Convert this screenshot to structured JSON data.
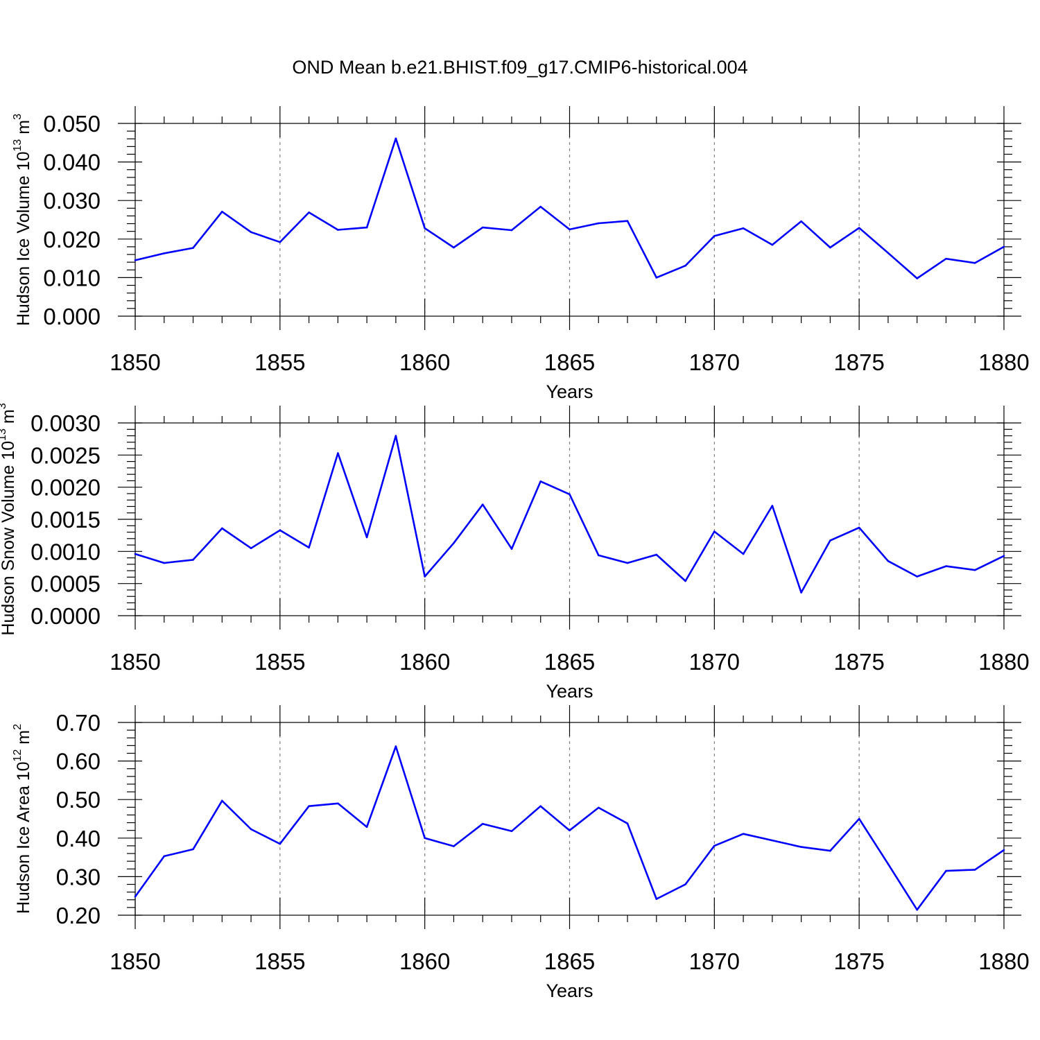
{
  "title": "OND Mean b.e21.BHIST.f09_g17.CMIP6-historical.004",
  "colors": {
    "line": "#0000ff",
    "axis": "#000000",
    "grid": "#7f7f7f"
  },
  "chart_data": [
    {
      "type": "line",
      "xlabel": "Years",
      "ylabel": {
        "prefix": "Hudson Ice Volume 10",
        "exp": "13",
        "mid": " m",
        "unit_exp": "3"
      },
      "xlim": [
        1850,
        1880
      ],
      "ylim": [
        0.0,
        0.05
      ],
      "xticks": [
        1850,
        1855,
        1860,
        1865,
        1870,
        1875,
        1880
      ],
      "xtick_labels": [
        "1850",
        "1855",
        "1860",
        "1865",
        "1870",
        "1875",
        "1880"
      ],
      "yticks": [
        0.0,
        0.01,
        0.02,
        0.03,
        0.04,
        0.05
      ],
      "ytick_labels": [
        "0.000",
        "0.010",
        "0.020",
        "0.030",
        "0.040",
        "0.050"
      ],
      "y_minor_step": 0.002,
      "grid": "vertical dashed at major x ticks",
      "x": [
        1850,
        1851,
        1852,
        1853,
        1854,
        1855,
        1856,
        1857,
        1858,
        1859,
        1860,
        1861,
        1862,
        1863,
        1864,
        1865,
        1866,
        1867,
        1868,
        1869,
        1870,
        1871,
        1872,
        1873,
        1874,
        1875,
        1876,
        1877,
        1878,
        1879,
        1880
      ],
      "values": [
        0.0145,
        0.0163,
        0.0177,
        0.0271,
        0.0218,
        0.0192,
        0.0269,
        0.0224,
        0.023,
        0.0461,
        0.0228,
        0.0178,
        0.023,
        0.0223,
        0.0284,
        0.0225,
        0.0241,
        0.0247,
        0.01,
        0.0131,
        0.0208,
        0.0228,
        0.0185,
        0.0246,
        0.0178,
        0.0229,
        0.0164,
        0.0098,
        0.0149,
        0.0138,
        0.018
      ]
    },
    {
      "type": "line",
      "xlabel": "Years",
      "ylabel": {
        "prefix": "Hudson Snow Volume 10",
        "exp": "13",
        "mid": " m",
        "unit_exp": "3"
      },
      "xlim": [
        1850,
        1880
      ],
      "ylim": [
        0.0,
        0.003
      ],
      "xticks": [
        1850,
        1855,
        1860,
        1865,
        1870,
        1875,
        1880
      ],
      "xtick_labels": [
        "1850",
        "1855",
        "1860",
        "1865",
        "1870",
        "1875",
        "1880"
      ],
      "yticks": [
        0.0,
        0.0005,
        0.001,
        0.0015,
        0.002,
        0.0025,
        0.003
      ],
      "ytick_labels": [
        "0.0000",
        "0.0005",
        "0.0010",
        "0.0015",
        "0.0020",
        "0.0025",
        "0.0030"
      ],
      "y_minor_step": 0.0001,
      "grid": "vertical dashed at major x ticks",
      "x": [
        1850,
        1851,
        1852,
        1853,
        1854,
        1855,
        1856,
        1857,
        1858,
        1859,
        1860,
        1861,
        1862,
        1863,
        1864,
        1865,
        1866,
        1867,
        1868,
        1869,
        1870,
        1871,
        1872,
        1873,
        1874,
        1875,
        1876,
        1877,
        1878,
        1879,
        1880
      ],
      "values": [
        0.00096,
        0.00082,
        0.00087,
        0.00136,
        0.00105,
        0.00133,
        0.00106,
        0.00253,
        0.00122,
        0.0028,
        0.00061,
        0.00113,
        0.00173,
        0.00104,
        0.00209,
        0.00189,
        0.00094,
        0.00082,
        0.00095,
        0.00054,
        0.00131,
        0.00096,
        0.00171,
        0.00036,
        0.00117,
        0.00137,
        0.00085,
        0.00061,
        0.00077,
        0.00071,
        0.00093
      ]
    },
    {
      "type": "line",
      "xlabel": "Years",
      "ylabel": {
        "prefix": "Hudson Ice Area 10",
        "exp": "12",
        "mid": " m",
        "unit_exp": "2"
      },
      "xlim": [
        1850,
        1880
      ],
      "ylim": [
        0.2,
        0.7
      ],
      "xticks": [
        1850,
        1855,
        1860,
        1865,
        1870,
        1875,
        1880
      ],
      "xtick_labels": [
        "1850",
        "1855",
        "1860",
        "1865",
        "1870",
        "1875",
        "1880"
      ],
      "yticks": [
        0.2,
        0.3,
        0.4,
        0.5,
        0.6,
        0.7
      ],
      "ytick_labels": [
        "0.20",
        "0.30",
        "0.40",
        "0.50",
        "0.60",
        "0.70"
      ],
      "y_minor_step": 0.02,
      "grid": "vertical dashed at major x ticks",
      "x": [
        1850,
        1851,
        1852,
        1853,
        1854,
        1855,
        1856,
        1857,
        1858,
        1859,
        1860,
        1861,
        1862,
        1863,
        1864,
        1865,
        1866,
        1867,
        1868,
        1869,
        1870,
        1871,
        1872,
        1873,
        1874,
        1875,
        1876,
        1877,
        1878,
        1879,
        1880
      ],
      "values": [
        0.248,
        0.353,
        0.371,
        0.497,
        0.423,
        0.385,
        0.483,
        0.49,
        0.429,
        0.638,
        0.4,
        0.379,
        0.437,
        0.418,
        0.483,
        0.42,
        0.479,
        0.438,
        0.242,
        0.28,
        0.38,
        0.411,
        0.394,
        0.377,
        0.367,
        0.45,
        0.333,
        0.214,
        0.315,
        0.318,
        0.369
      ]
    }
  ]
}
